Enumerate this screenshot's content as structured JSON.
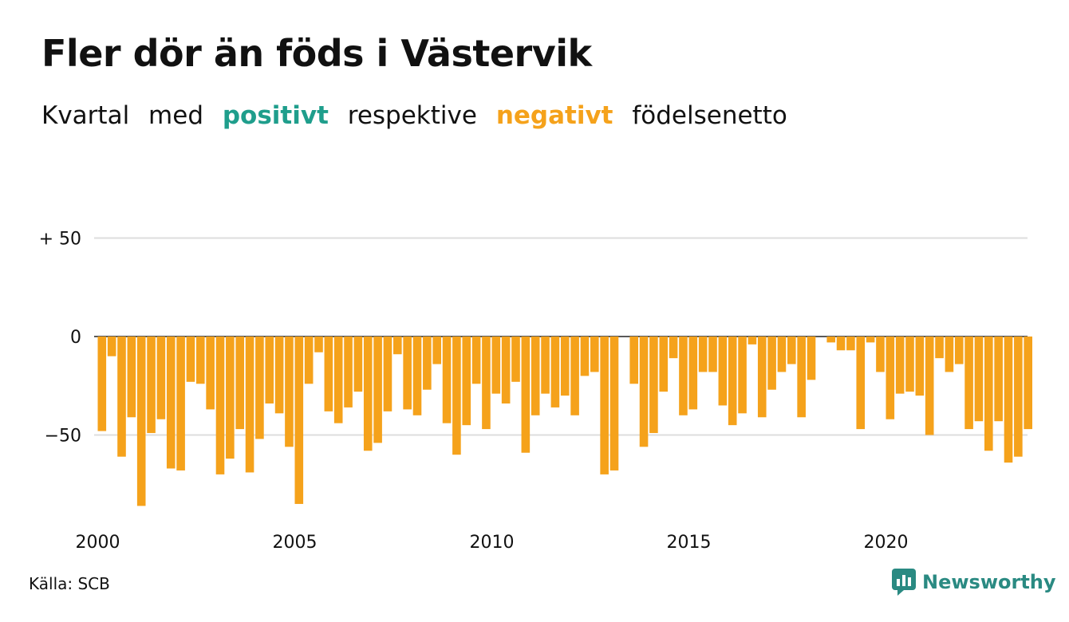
{
  "title": "Fler dör än föds i Västervik",
  "subtitle": {
    "word1": "Kvartal",
    "word2": "med",
    "positive": "positivt",
    "word3": "respektive",
    "negative": "negativt",
    "word4": "födelsenetto"
  },
  "source": "Källa: SCB",
  "brand": {
    "name": "Newsworthy",
    "icon": "newsworthy-logo-icon"
  },
  "colors": {
    "positive": "#1f9e8c",
    "negative": "#f5a21b",
    "grid": "#dddddd",
    "brand": "#2a8a82"
  },
  "chart_data": {
    "type": "bar",
    "title": "Fler dör än föds i Västervik",
    "xlabel": "",
    "ylabel": "",
    "ylim": [
      -90,
      55
    ],
    "y_ticks": [
      {
        "value": 50,
        "label": "+ 50"
      },
      {
        "value": 0,
        "label": "0"
      },
      {
        "value": -50,
        "label": "−50"
      }
    ],
    "x_ticks": [
      "2000",
      "2005",
      "2010",
      "2015",
      "2020"
    ],
    "grid": true,
    "start_year": 2000,
    "periods_per_year": 4,
    "values": [
      -48,
      -10,
      -61,
      -41,
      -86,
      -49,
      -42,
      -67,
      -68,
      -23,
      -24,
      -37,
      -70,
      -62,
      -47,
      -69,
      -52,
      -34,
      -39,
      -56,
      -85,
      -24,
      -8,
      -38,
      -44,
      -36,
      -28,
      -58,
      -54,
      -38,
      -9,
      -37,
      -40,
      -27,
      -14,
      -44,
      -60,
      -45,
      -24,
      -47,
      -29,
      -34,
      -23,
      -59,
      -40,
      -29,
      -36,
      -30,
      -40,
      -20,
      -18,
      -70,
      -68,
      0,
      -24,
      -56,
      -49,
      -28,
      -11,
      -40,
      -37,
      -18,
      -18,
      -35,
      -45,
      -39,
      -4,
      -41,
      -27,
      -18,
      -14,
      -41,
      -22,
      0,
      -3,
      -7,
      -7,
      -47,
      -3,
      -18,
      -42,
      -29,
      -28,
      -30,
      -50,
      -11,
      -18,
      -14,
      -47,
      -43,
      -58,
      -43,
      -64,
      -61,
      -47
    ]
  }
}
